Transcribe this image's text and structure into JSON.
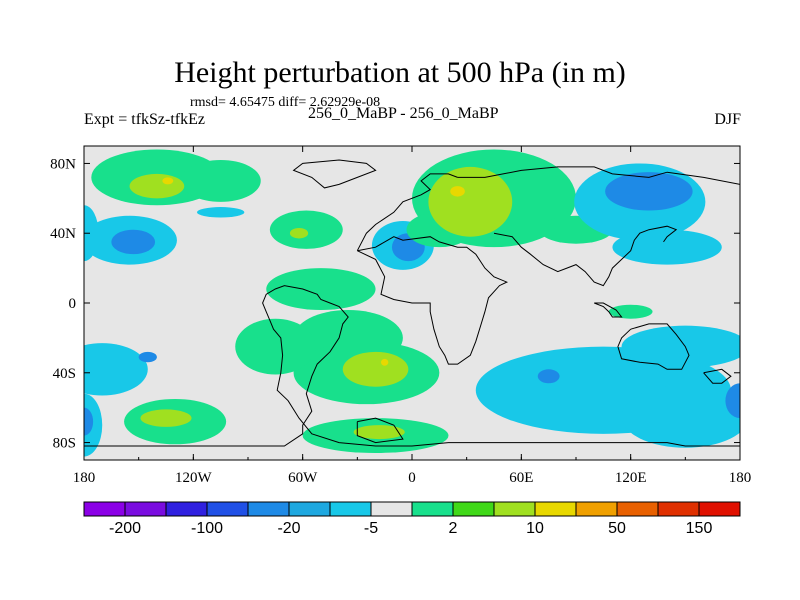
{
  "chart_data": {
    "type": "heatmap",
    "title": "Height perturbation at 500 hPa (in m)",
    "stats": "rmsd= 4.65475  diff= 2.62929e-08",
    "left_label": "Expt = tfkSz-tfkEz",
    "center_label": "256_0_MaBP - 256_0_MaBP",
    "right_label": "DJF",
    "xlim": [
      -180,
      180
    ],
    "ylim": [
      -90,
      90
    ],
    "x_ticks": [
      {
        "value": -180,
        "label": "180"
      },
      {
        "value": -120,
        "label": "120W"
      },
      {
        "value": -60,
        "label": "60W"
      },
      {
        "value": 0,
        "label": "0"
      },
      {
        "value": 60,
        "label": "60E"
      },
      {
        "value": 120,
        "label": "120E"
      },
      {
        "value": 180,
        "label": "180"
      }
    ],
    "y_ticks": [
      {
        "value": 80,
        "label": "80N"
      },
      {
        "value": 40,
        "label": "40N"
      },
      {
        "value": 0,
        "label": "0"
      },
      {
        "value": -40,
        "label": "40S"
      },
      {
        "value": -80,
        "label": "80S"
      }
    ],
    "colorbar": {
      "colors": [
        "#8b00e6",
        "#7a0ce0",
        "#3020e0",
        "#2050e6",
        "#1e8ae6",
        "#1ea8e0",
        "#18c8e8",
        "#e6e6e6",
        "#18e08c",
        "#40d818",
        "#a0e020",
        "#e8d800",
        "#f0a000",
        "#e86000",
        "#e03000",
        "#e01000"
      ],
      "labels": [
        {
          "after_box": 1,
          "text": "-200"
        },
        {
          "after_box": 3,
          "text": "-100"
        },
        {
          "after_box": 5,
          "text": "-20"
        },
        {
          "after_box": 7,
          "text": "-5"
        },
        {
          "after_box": 9,
          "text": "2"
        },
        {
          "after_box": 11,
          "text": "10"
        },
        {
          "after_box": 13,
          "text": "50"
        },
        {
          "after_box": 15,
          "text": "150"
        }
      ]
    },
    "features": [
      {
        "name": "green-band-north-pacific",
        "color": "#18e08c",
        "lon": -140,
        "lat": 72,
        "rx": 36,
        "ry": 16
      },
      {
        "name": "green-band-east-pacific",
        "color": "#18e08c",
        "lon": -105,
        "lat": 70,
        "rx": 22,
        "ry": 12
      },
      {
        "name": "lime-patch-north-pacific",
        "color": "#a0e020",
        "lon": -140,
        "lat": 67,
        "rx": 15,
        "ry": 7
      },
      {
        "name": "yellow-spot-north-pacific",
        "color": "#e8d800",
        "lon": -134,
        "lat": 70,
        "rx": 3,
        "ry": 2
      },
      {
        "name": "cyan-north-atlantic-west",
        "color": "#18c8e8",
        "lon": -155,
        "lat": 36,
        "rx": 26,
        "ry": 14
      },
      {
        "name": "blue-north-atlantic-west",
        "color": "#1e8ae6",
        "lon": -153,
        "lat": 35,
        "rx": 12,
        "ry": 7
      },
      {
        "name": "cyan-west-edge",
        "color": "#18c8e8",
        "lon": -180,
        "lat": 40,
        "rx": 8,
        "ry": 16
      },
      {
        "name": "cyan-strip-north",
        "color": "#18c8e8",
        "lon": -105,
        "lat": 52,
        "rx": 13,
        "ry": 3
      },
      {
        "name": "green-midlat-atlantic",
        "color": "#18e08c",
        "lon": -58,
        "lat": 42,
        "rx": 20,
        "ry": 11
      },
      {
        "name": "lime-midlat-atlantic",
        "color": "#a0e020",
        "lon": -62,
        "lat": 40,
        "rx": 5,
        "ry": 3
      },
      {
        "name": "cyan-north-atlantic",
        "color": "#18c8e8",
        "lon": -5,
        "lat": 33,
        "rx": 17,
        "ry": 14
      },
      {
        "name": "blue-north-atlantic",
        "color": "#1e8ae6",
        "lon": -2,
        "lat": 32,
        "rx": 9,
        "ry": 8
      },
      {
        "name": "green-europe-band",
        "color": "#18e08c",
        "lon": 45,
        "lat": 60,
        "rx": 45,
        "ry": 28
      },
      {
        "name": "green-europe-extension",
        "color": "#18e08c",
        "lon": 15,
        "lat": 42,
        "rx": 18,
        "ry": 10
      },
      {
        "name": "lime-europe",
        "color": "#a0e020",
        "lon": 32,
        "lat": 58,
        "rx": 23,
        "ry": 20
      },
      {
        "name": "yellow-spot-europe",
        "color": "#e8d800",
        "lon": 25,
        "lat": 64,
        "rx": 4,
        "ry": 3
      },
      {
        "name": "green-central-asia",
        "color": "#18e08c",
        "lon": 90,
        "lat": 42,
        "rx": 20,
        "ry": 8
      },
      {
        "name": "cyan-arctic-asia",
        "color": "#18c8e8",
        "lon": 125,
        "lat": 58,
        "rx": 36,
        "ry": 22
      },
      {
        "name": "cyan-east-asia",
        "color": "#18c8e8",
        "lon": 140,
        "lat": 32,
        "rx": 30,
        "ry": 10
      },
      {
        "name": "blue-arctic-asia",
        "color": "#1e8ae6",
        "lon": 130,
        "lat": 64,
        "rx": 24,
        "ry": 11
      },
      {
        "name": "green-tropical-strip",
        "color": "#18e08c",
        "lon": -50,
        "lat": 8,
        "rx": 30,
        "ry": 12
      },
      {
        "name": "green-tropical-atlantic",
        "color": "#18e08c",
        "lon": -35,
        "lat": -20,
        "rx": 30,
        "ry": 16
      },
      {
        "name": "green-south-atlantic",
        "color": "#18e08c",
        "lon": -25,
        "lat": -40,
        "rx": 40,
        "ry": 18
      },
      {
        "name": "green-south-america",
        "color": "#18e08c",
        "lon": -75,
        "lat": -25,
        "rx": 22,
        "ry": 16
      },
      {
        "name": "lime-south-atlantic",
        "color": "#a0e020",
        "lon": -20,
        "lat": -38,
        "rx": 18,
        "ry": 10
      },
      {
        "name": "yellow-spot-south-atlantic",
        "color": "#e8d800",
        "lon": -15,
        "lat": -34,
        "rx": 2,
        "ry": 2
      },
      {
        "name": "green-southern-ocean",
        "color": "#18e08c",
        "lon": -20,
        "lat": -76,
        "rx": 40,
        "ry": 10
      },
      {
        "name": "lime-southern-ocean",
        "color": "#a0e020",
        "lon": -18,
        "lat": -74,
        "rx": 14,
        "ry": 4
      },
      {
        "name": "green-south-pacific",
        "color": "#18e08c",
        "lon": -130,
        "lat": -68,
        "rx": 28,
        "ry": 13
      },
      {
        "name": "lime-south-pacific",
        "color": "#a0e020",
        "lon": -135,
        "lat": -66,
        "rx": 14,
        "ry": 5
      },
      {
        "name": "cyan-south-pacific-west",
        "color": "#18c8e8",
        "lon": -170,
        "lat": -38,
        "rx": 25,
        "ry": 15
      },
      {
        "name": "cyan-west-edge-south",
        "color": "#18c8e8",
        "lon": -180,
        "lat": -70,
        "rx": 10,
        "ry": 18
      },
      {
        "name": "blue-south-pacific-west",
        "color": "#1e8ae6",
        "lon": -145,
        "lat": -31,
        "rx": 5,
        "ry": 3
      },
      {
        "name": "blue-southwest-edge",
        "color": "#1e8ae6",
        "lon": -180,
        "lat": -68,
        "rx": 5,
        "ry": 8
      },
      {
        "name": "cyan-south-indian",
        "color": "#18c8e8",
        "lon": 105,
        "lat": -50,
        "rx": 70,
        "ry": 25
      },
      {
        "name": "cyan-south-east",
        "color": "#18c8e8",
        "lon": 150,
        "lat": -25,
        "rx": 35,
        "ry": 12
      },
      {
        "name": "cyan-south-east-low",
        "color": "#18c8e8",
        "lon": 150,
        "lat": -65,
        "rx": 35,
        "ry": 18
      },
      {
        "name": "blue-south-indian",
        "color": "#1e8ae6",
        "lon": 75,
        "lat": -42,
        "rx": 6,
        "ry": 4
      },
      {
        "name": "blue-south-east-edge",
        "color": "#1e8ae6",
        "lon": 180,
        "lat": -56,
        "rx": 8,
        "ry": 10
      },
      {
        "name": "green-east-tropics",
        "color": "#18e08c",
        "lon": 120,
        "lat": -5,
        "rx": 12,
        "ry": 4
      }
    ],
    "coastlines": [
      [
        [
          -180,
          -82
        ],
        [
          -100,
          -82
        ],
        [
          -70,
          -82
        ],
        [
          -60,
          -75
        ],
        [
          -60,
          -70
        ],
        [
          -55,
          -62
        ],
        [
          -58,
          -52
        ],
        [
          -55,
          -42
        ],
        [
          -52,
          -35
        ],
        [
          -45,
          -28
        ],
        [
          -40,
          -20
        ],
        [
          -38,
          -12
        ],
        [
          -35,
          -8
        ],
        [
          -40,
          -2
        ],
        [
          -45,
          0
        ],
        [
          -50,
          2
        ],
        [
          -52,
          5
        ],
        [
          -60,
          8
        ],
        [
          -70,
          10
        ],
        [
          -75,
          8
        ],
        [
          -80,
          5
        ],
        [
          -82,
          0
        ],
        [
          -80,
          -5
        ],
        [
          -78,
          -10
        ],
        [
          -76,
          -15
        ],
        [
          -72,
          -20
        ],
        [
          -71,
          -30
        ],
        [
          -72,
          -40
        ],
        [
          -74,
          -50
        ],
        [
          -68,
          -56
        ],
        [
          -62,
          -66
        ],
        [
          -55,
          -75
        ],
        [
          -40,
          -80
        ],
        [
          -20,
          -82
        ],
        [
          0,
          -82
        ],
        [
          20,
          -80
        ],
        [
          60,
          -80
        ],
        [
          100,
          -80
        ],
        [
          140,
          -80
        ],
        [
          150,
          -82
        ],
        [
          180,
          -82
        ]
      ],
      [
        [
          -30,
          -68
        ],
        [
          -20,
          -66
        ],
        [
          -10,
          -70
        ],
        [
          -5,
          -78
        ],
        [
          -20,
          -80
        ],
        [
          -30,
          -76
        ],
        [
          -30,
          -68
        ]
      ],
      [
        [
          -40,
          68
        ],
        [
          -30,
          72
        ],
        [
          -20,
          76
        ],
        [
          -25,
          80
        ],
        [
          -40,
          82
        ],
        [
          -60,
          80
        ],
        [
          -65,
          76
        ],
        [
          -55,
          72
        ],
        [
          -48,
          66
        ],
        [
          -40,
          68
        ]
      ],
      [
        [
          -30,
          30
        ],
        [
          -25,
          40
        ],
        [
          -20,
          45
        ],
        [
          -10,
          52
        ],
        [
          -5,
          58
        ],
        [
          5,
          62
        ],
        [
          10,
          65
        ],
        [
          5,
          70
        ],
        [
          10,
          74
        ],
        [
          20,
          74
        ],
        [
          25,
          72
        ]
      ],
      [
        [
          -30,
          30
        ],
        [
          -20,
          25
        ],
        [
          -15,
          15
        ],
        [
          -17,
          5
        ],
        [
          -10,
          2
        ],
        [
          0,
          0
        ],
        [
          10,
          0
        ],
        [
          10,
          -5
        ],
        [
          12,
          -15
        ],
        [
          15,
          -25
        ],
        [
          18,
          -30
        ],
        [
          20,
          -35
        ],
        [
          25,
          -35
        ],
        [
          32,
          -30
        ],
        [
          35,
          -22
        ],
        [
          38,
          -12
        ],
        [
          40,
          -5
        ],
        [
          42,
          3
        ],
        [
          48,
          10
        ],
        [
          52,
          12
        ],
        [
          45,
          15
        ],
        [
          40,
          20
        ],
        [
          35,
          28
        ],
        [
          30,
          32
        ],
        [
          25,
          32
        ],
        [
          15,
          35
        ],
        [
          10,
          38
        ],
        [
          -5,
          36
        ],
        [
          -10,
          38
        ],
        [
          -20,
          32
        ],
        [
          -30,
          30
        ]
      ],
      [
        [
          25,
          72
        ],
        [
          40,
          72
        ],
        [
          50,
          74
        ],
        [
          60,
          76
        ],
        [
          80,
          78
        ],
        [
          100,
          78
        ],
        [
          110,
          74
        ],
        [
          130,
          72
        ],
        [
          140,
          75
        ],
        [
          160,
          72
        ],
        [
          180,
          68
        ]
      ],
      [
        [
          45,
          40
        ],
        [
          55,
          38
        ],
        [
          60,
          32
        ],
        [
          65,
          28
        ],
        [
          72,
          22
        ],
        [
          80,
          18
        ],
        [
          85,
          20
        ],
        [
          90,
          22
        ],
        [
          95,
          18
        ],
        [
          100,
          12
        ],
        [
          105,
          10
        ],
        [
          108,
          15
        ],
        [
          110,
          20
        ],
        [
          115,
          25
        ],
        [
          120,
          30
        ],
        [
          122,
          36
        ],
        [
          125,
          40
        ],
        [
          130,
          42
        ],
        [
          140,
          44
        ],
        [
          145,
          42
        ],
        [
          140,
          38
        ],
        [
          138,
          35
        ]
      ],
      [
        [
          120,
          -15
        ],
        [
          130,
          -12
        ],
        [
          140,
          -12
        ],
        [
          145,
          -18
        ],
        [
          150,
          -25
        ],
        [
          152,
          -30
        ],
        [
          148,
          -38
        ],
        [
          140,
          -38
        ],
        [
          135,
          -35
        ],
        [
          125,
          -34
        ],
        [
          115,
          -32
        ],
        [
          113,
          -25
        ],
        [
          115,
          -20
        ],
        [
          120,
          -15
        ]
      ],
      [
        [
          160,
          -40
        ],
        [
          170,
          -38
        ],
        [
          175,
          -42
        ],
        [
          170,
          -46
        ],
        [
          165,
          -46
        ],
        [
          160,
          -40
        ]
      ],
      [
        [
          100,
          0
        ],
        [
          105,
          -2
        ],
        [
          108,
          -5
        ],
        [
          110,
          -8
        ],
        [
          115,
          -8
        ],
        [
          112,
          -4
        ],
        [
          105,
          0
        ],
        [
          100,
          0
        ]
      ]
    ]
  }
}
